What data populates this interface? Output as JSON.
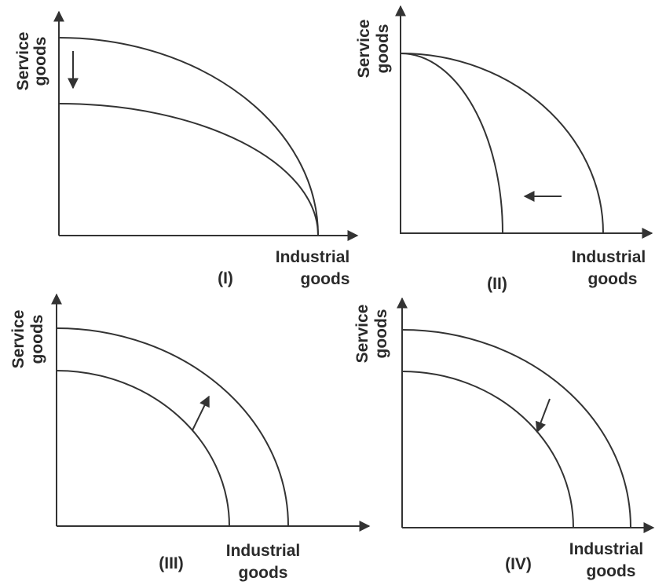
{
  "panels": [
    {
      "label": "(I)",
      "y_axis_label": [
        "Service",
        "goods"
      ],
      "x_axis_label": [
        "Industrial",
        "goods"
      ]
    },
    {
      "label": "(II)",
      "y_axis_label": [
        "Service",
        "goods"
      ],
      "x_axis_label": [
        "Industrial",
        "goods"
      ]
    },
    {
      "label": "(III)",
      "y_axis_label": [
        "Service",
        "goods"
      ],
      "x_axis_label": [
        "Industrial",
        "goods"
      ]
    },
    {
      "label": "(IV)",
      "y_axis_label": [
        "Service",
        "goods"
      ],
      "x_axis_label": [
        "Industrial",
        "goods"
      ]
    }
  ]
}
